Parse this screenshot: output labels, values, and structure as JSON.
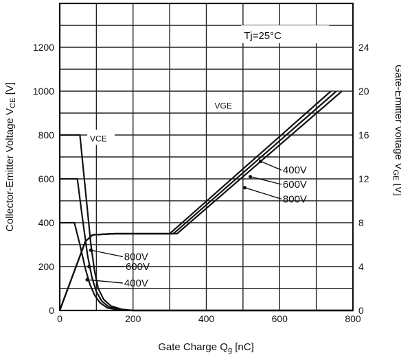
{
  "chart_data": {
    "type": "line",
    "annotation_condition": "Tj=25°C",
    "xlabel": "Gate Charge Q",
    "xlabel_sub": "g",
    "xlabel_unit": " [nC]",
    "ylabel_left": "Collector-Emitter Voltage V",
    "ylabel_left_sub": "CE",
    "ylabel_left_unit": " [V]",
    "ylabel_right": "Gate-Emitter Voltage V",
    "ylabel_right_sub": "GE",
    "ylabel_right_unit": " [V]",
    "xlim": [
      0,
      800
    ],
    "ylim_left": [
      0,
      1400
    ],
    "ylim_right": [
      0,
      28
    ],
    "x_ticks": [
      "0",
      "200",
      "400",
      "600",
      "800"
    ],
    "y_left_ticks": [
      "0",
      "200",
      "400",
      "600",
      "800",
      "1000",
      "1200"
    ],
    "y_right_ticks": [
      "0",
      "4",
      "8",
      "12",
      "16",
      "20",
      "24"
    ],
    "grid": true,
    "vge_label": "VGE",
    "vce_label": "VCE",
    "vce_series": [
      {
        "name": "800V",
        "x": [
          0,
          55,
          70,
          85,
          95,
          105,
          120,
          140,
          170,
          200,
          800
        ],
        "y": [
          800,
          800,
          550,
          300,
          180,
          100,
          50,
          20,
          5,
          0,
          0
        ]
      },
      {
        "name": "600V",
        "x": [
          0,
          48,
          62,
          76,
          88,
          100,
          115,
          135,
          165,
          200,
          800
        ],
        "y": [
          600,
          600,
          420,
          250,
          150,
          85,
          42,
          15,
          4,
          0,
          0
        ]
      },
      {
        "name": "400V",
        "x": [
          0,
          40,
          55,
          70,
          82,
          95,
          110,
          130,
          160,
          200,
          800
        ],
        "y": [
          400,
          400,
          300,
          190,
          120,
          70,
          35,
          12,
          3,
          0,
          0
        ]
      }
    ],
    "vge_series": [
      {
        "name": "400V",
        "x": [
          0,
          70,
          90,
          150,
          300,
          740
        ],
        "y": [
          0,
          6.3,
          6.9,
          7.0,
          7.0,
          20
        ]
      },
      {
        "name": "600V",
        "x": [
          0,
          70,
          90,
          150,
          310,
          755
        ],
        "y": [
          0,
          6.3,
          6.9,
          7.0,
          7.0,
          20
        ]
      },
      {
        "name": "800V",
        "x": [
          0,
          70,
          90,
          150,
          320,
          770
        ],
        "y": [
          0,
          6.3,
          6.9,
          7.0,
          7.0,
          20
        ]
      }
    ],
    "vce_legend": [
      "800V",
      "600V",
      "400V"
    ],
    "vge_legend": [
      "400V",
      "600V",
      "800V"
    ]
  }
}
